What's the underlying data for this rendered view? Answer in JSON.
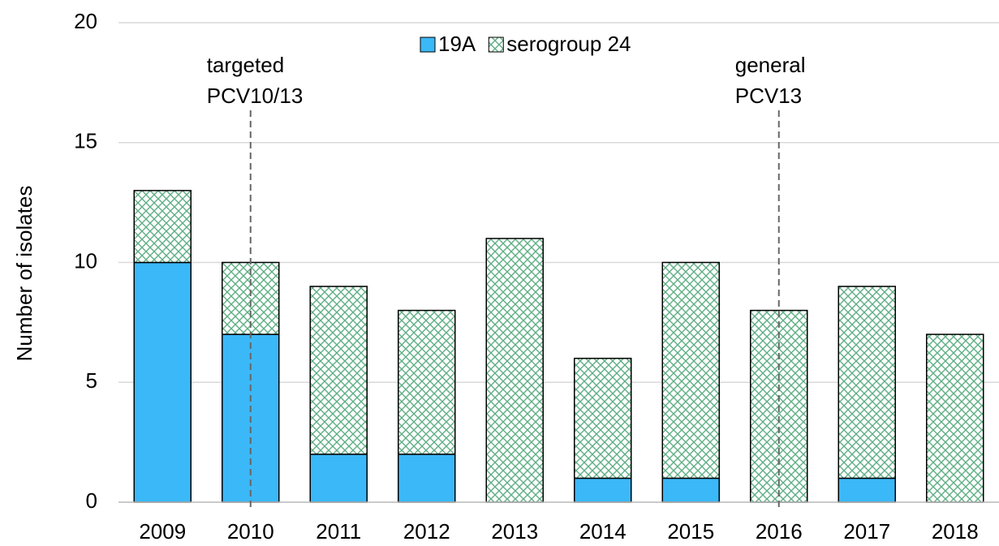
{
  "chart_data": {
    "type": "stacked_bar",
    "y_label": "Number of isolates",
    "categories": [
      "2009",
      "2010",
      "2011",
      "2012",
      "2013",
      "2014",
      "2015",
      "2016",
      "2017",
      "2018"
    ],
    "series": [
      {
        "name": "19A",
        "color": "#3bb8f7",
        "values": [
          10,
          7,
          2,
          2,
          0,
          1,
          1,
          0,
          1,
          0
        ]
      },
      {
        "name": "serogroup 24",
        "color": "#5fae84",
        "pattern": "crosshatch",
        "values": [
          3,
          3,
          7,
          6,
          11,
          5,
          9,
          8,
          8,
          7
        ]
      }
    ],
    "ylim": [
      0,
      20
    ],
    "yticks": [
      0,
      5,
      10,
      15,
      20
    ],
    "grid": true,
    "legend": "top",
    "annotations": [
      {
        "lines": [
          "targeted",
          "PCV10/13"
        ],
        "x": "2010"
      },
      {
        "lines": [
          "general",
          "PCV13"
        ],
        "x": "2016"
      }
    ]
  }
}
